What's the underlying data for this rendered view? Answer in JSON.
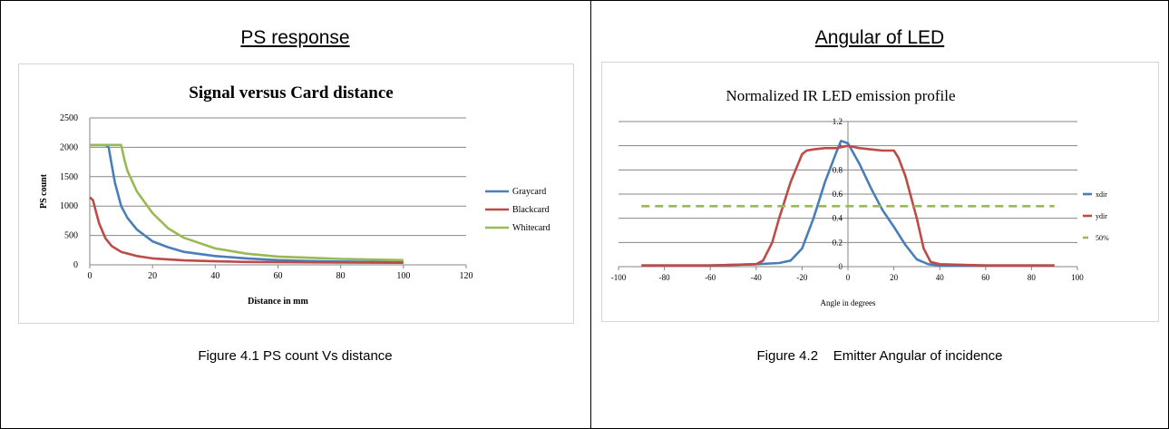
{
  "panels": [
    {
      "heading": "PS response",
      "caption": "Figure 4.1 PS count Vs distance"
    },
    {
      "heading": "Angular of LED",
      "caption": "Figure 4.2    Emitter Angular of incidence"
    }
  ],
  "chart_data": [
    {
      "type": "line",
      "title": "Signal versus Card distance",
      "xlabel": "Distance in mm",
      "ylabel": "PS count",
      "xlim": [
        0,
        120
      ],
      "ylim": [
        0,
        2500
      ],
      "xticks": [
        "0",
        "20",
        "40",
        "60",
        "80",
        "100",
        "120"
      ],
      "yticks": [
        "0",
        "500",
        "1000",
        "1500",
        "2000",
        "2500"
      ],
      "grid": true,
      "legend_position": "right",
      "series": [
        {
          "name": "Graycard",
          "color": "#4a7ebb",
          "x": [
            0,
            5,
            6,
            7,
            8,
            10,
            12,
            15,
            20,
            25,
            30,
            40,
            50,
            60,
            70,
            80,
            90,
            100
          ],
          "y": [
            2040,
            2040,
            2000,
            1700,
            1400,
            1000,
            800,
            600,
            400,
            300,
            220,
            150,
            110,
            80,
            65,
            55,
            50,
            45
          ]
        },
        {
          "name": "Blackcard",
          "color": "#be4b48",
          "x": [
            0,
            1,
            2,
            3,
            5,
            7,
            10,
            15,
            20,
            30,
            40,
            50,
            60,
            80,
            100
          ],
          "y": [
            1150,
            1100,
            900,
            700,
            450,
            320,
            220,
            150,
            110,
            75,
            60,
            50,
            45,
            40,
            35
          ]
        },
        {
          "name": "Whitecard",
          "color": "#98b954",
          "x": [
            0,
            8,
            10,
            11,
            12,
            15,
            20,
            25,
            30,
            40,
            50,
            60,
            70,
            80,
            90,
            100
          ],
          "y": [
            2040,
            2040,
            2040,
            1800,
            1600,
            1250,
            880,
            620,
            460,
            280,
            190,
            140,
            120,
            100,
            90,
            80
          ]
        }
      ]
    },
    {
      "type": "line",
      "title": "Normalized IR LED emission profile",
      "xlabel": "Angle in degrees",
      "ylabel": "",
      "xlim": [
        -100,
        100
      ],
      "ylim": [
        0,
        1.2
      ],
      "xticks": [
        "-100",
        "-80",
        "-60",
        "-40",
        "-20",
        "0",
        "20",
        "40",
        "60",
        "80",
        "100"
      ],
      "yticks": [
        "0",
        "0.2",
        "0.4",
        "0.6",
        "0.8",
        "1",
        "1.2"
      ],
      "grid": true,
      "legend_position": "right",
      "series": [
        {
          "name": "xdir",
          "color": "#4a7ebb",
          "dash": false,
          "x": [
            -90,
            -60,
            -40,
            -30,
            -25,
            -20,
            -15,
            -10,
            -5,
            -3,
            0,
            5,
            10,
            15,
            20,
            25,
            30,
            35,
            40,
            60,
            90
          ],
          "y": [
            0.01,
            0.01,
            0.02,
            0.03,
            0.05,
            0.15,
            0.4,
            0.7,
            0.95,
            1.04,
            1.02,
            0.85,
            0.65,
            0.47,
            0.33,
            0.18,
            0.06,
            0.02,
            0.01,
            0.01,
            0.01
          ]
        },
        {
          "name": "ydir",
          "color": "#be4b48",
          "dash": false,
          "x": [
            -90,
            -60,
            -40,
            -37,
            -33,
            -30,
            -25,
            -20,
            -18,
            -15,
            -10,
            -5,
            0,
            5,
            10,
            15,
            20,
            22,
            25,
            30,
            33,
            36,
            40,
            60,
            90
          ],
          "y": [
            0.01,
            0.01,
            0.02,
            0.05,
            0.2,
            0.4,
            0.7,
            0.93,
            0.96,
            0.97,
            0.98,
            0.98,
            1.0,
            0.98,
            0.97,
            0.96,
            0.96,
            0.9,
            0.75,
            0.4,
            0.15,
            0.04,
            0.02,
            0.01,
            0.01
          ]
        },
        {
          "name": "50%",
          "color": "#98b954",
          "dash": true,
          "x": [
            -90,
            90
          ],
          "y": [
            0.5,
            0.5
          ]
        }
      ]
    }
  ]
}
